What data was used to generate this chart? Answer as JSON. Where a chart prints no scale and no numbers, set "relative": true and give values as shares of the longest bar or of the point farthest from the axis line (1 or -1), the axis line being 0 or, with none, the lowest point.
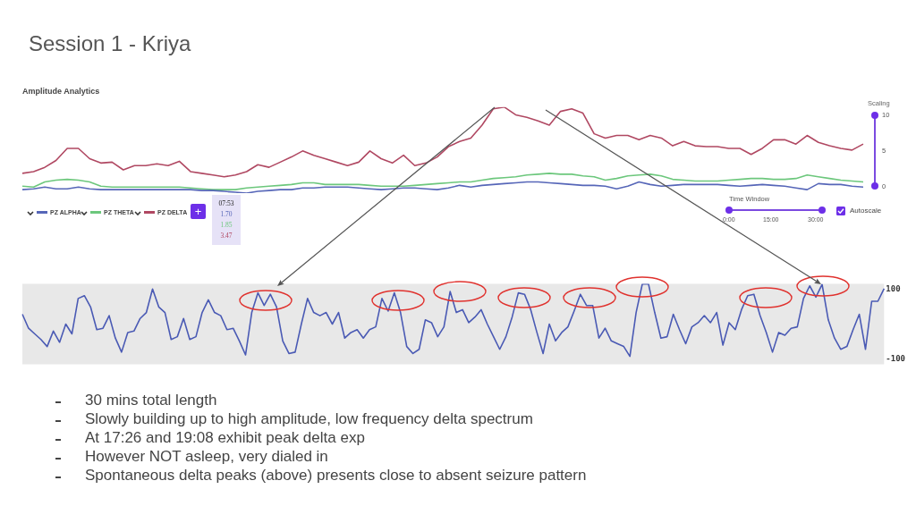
{
  "chart_data": [
    {
      "type": "other",
      "title": "Session 1 - Kriya"
    },
    {
      "type": "line",
      "title": "Amplitude Analytics",
      "relative": true,
      "legend": "bottom left",
      "categories": [
        null,
        null,
        null,
        null,
        null,
        null,
        null,
        null,
        null,
        null,
        null,
        null,
        null,
        null,
        null,
        null,
        null,
        null,
        null,
        null,
        null,
        null,
        null,
        null,
        null,
        null,
        null,
        null,
        null,
        null,
        null,
        null,
        null,
        null,
        null,
        null,
        null,
        null,
        null,
        null,
        null,
        null,
        null,
        null,
        null,
        null,
        null,
        null,
        null,
        null,
        null,
        null,
        null,
        null,
        null,
        null,
        null,
        null,
        null,
        null,
        null,
        null,
        null,
        null,
        null,
        null,
        null,
        null,
        null,
        null,
        null,
        null,
        null,
        null,
        null,
        null
      ],
      "series": [
        {
          "name": "PZ ALPHA",
          "color": "#5666b8",
          "values": [
            0.04,
            0.05,
            0.07,
            0.05,
            0.05,
            0.07,
            0.05,
            0.04,
            0.04,
            0.04,
            0.04,
            0.04,
            0.04,
            0.04,
            0.04,
            0.04,
            0.03,
            0.03,
            0.02,
            0.01,
            0.0,
            0.02,
            0.03,
            0.04,
            0.04,
            0.06,
            0.06,
            0.07,
            0.07,
            0.07,
            0.06,
            0.05,
            0.04,
            0.05,
            0.06,
            0.06,
            0.05,
            0.04,
            0.06,
            0.09,
            0.07,
            0.09,
            0.1,
            0.11,
            0.12,
            0.13,
            0.13,
            0.12,
            0.11,
            0.1,
            0.09,
            0.09,
            0.08,
            0.05,
            0.08,
            0.13,
            0.1,
            0.08,
            0.09,
            0.1,
            0.1,
            0.1,
            0.1,
            0.09,
            0.08,
            0.09,
            0.1,
            0.09,
            0.08,
            0.06,
            0.04,
            0.11,
            0.1,
            0.1,
            0.08,
            0.07
          ]
        },
        {
          "name": "PZ THETA",
          "color": "#6cc77c",
          "values": [
            0.08,
            0.07,
            0.13,
            0.15,
            0.16,
            0.15,
            0.13,
            0.08,
            0.07,
            0.07,
            0.07,
            0.07,
            0.07,
            0.07,
            0.07,
            0.06,
            0.05,
            0.04,
            0.04,
            0.04,
            0.06,
            0.07,
            0.08,
            0.09,
            0.1,
            0.12,
            0.12,
            0.1,
            0.1,
            0.1,
            0.1,
            0.09,
            0.08,
            0.08,
            0.08,
            0.09,
            0.1,
            0.11,
            0.12,
            0.13,
            0.13,
            0.15,
            0.17,
            0.18,
            0.19,
            0.21,
            0.22,
            0.23,
            0.22,
            0.22,
            0.2,
            0.19,
            0.15,
            0.17,
            0.2,
            0.21,
            0.22,
            0.2,
            0.16,
            0.15,
            0.14,
            0.14,
            0.14,
            0.15,
            0.16,
            0.17,
            0.17,
            0.16,
            0.16,
            0.17,
            0.21,
            0.19,
            0.17,
            0.15,
            0.14,
            0.13
          ]
        },
        {
          "name": "PZ DELTA",
          "color": "#b04862",
          "values": [
            0.23,
            0.25,
            0.3,
            0.38,
            0.52,
            0.52,
            0.4,
            0.35,
            0.36,
            0.27,
            0.32,
            0.32,
            0.34,
            0.32,
            0.37,
            0.25,
            0.23,
            0.21,
            0.19,
            0.21,
            0.25,
            0.33,
            0.3,
            0.36,
            0.42,
            0.49,
            0.44,
            0.4,
            0.36,
            0.32,
            0.36,
            0.49,
            0.4,
            0.35,
            0.44,
            0.32,
            0.35,
            0.42,
            0.54,
            0.6,
            0.64,
            0.79,
            0.98,
            1.0,
            0.91,
            0.88,
            0.84,
            0.79,
            0.95,
            0.98,
            0.93,
            0.69,
            0.64,
            0.67,
            0.67,
            0.62,
            0.67,
            0.64,
            0.55,
            0.6,
            0.55,
            0.54,
            0.54,
            0.52,
            0.52,
            0.45,
            0.52,
            0.62,
            0.62,
            0.57,
            0.67,
            0.59,
            0.55,
            0.52,
            0.5,
            0.57
          ]
        }
      ],
      "annotations": [
        "07:53",
        "1.70",
        "1.85",
        "3.47",
        "+",
        "Scaling",
        "10",
        "5",
        "0",
        "Time Window",
        "0:00",
        "15:00",
        "30:00",
        "Autoscale"
      ]
    },
    {
      "type": "line",
      "color": "#4a5ab4",
      "ylim": [
        -115,
        115
      ],
      "yticks": [
        -100,
        100
      ],
      "categories": [
        null,
        null,
        null,
        null,
        null,
        null,
        null,
        null,
        null,
        null,
        null,
        null,
        null,
        null,
        null,
        null,
        null,
        null,
        null,
        null,
        null,
        null,
        null,
        null,
        null,
        null,
        null,
        null,
        null,
        null,
        null,
        null,
        null,
        null,
        null,
        null,
        null,
        null,
        null,
        null,
        null,
        null,
        null,
        null,
        null,
        null,
        null,
        null,
        null,
        null,
        null,
        null,
        null,
        null,
        null,
        null,
        null,
        null,
        null,
        null,
        null,
        null,
        null,
        null,
        null,
        null,
        null,
        null,
        null,
        null,
        null,
        null,
        null,
        null,
        null,
        null,
        null,
        null,
        null,
        null,
        null,
        null,
        null,
        null,
        null,
        null,
        null,
        null,
        null,
        null,
        null,
        null,
        null,
        null,
        null,
        null,
        null,
        null,
        null,
        null,
        null,
        null,
        null,
        null,
        null,
        null,
        null,
        null,
        null,
        null,
        null,
        null,
        null,
        null,
        null,
        null,
        null,
        null,
        null,
        null,
        null,
        null,
        null,
        null,
        null,
        null,
        null,
        null,
        null,
        null,
        null,
        null,
        null,
        null,
        null,
        null,
        null,
        null,
        null,
        null
      ],
      "values": [
        28,
        -12,
        -28,
        -44,
        -64,
        -20,
        -52,
        0,
        -28,
        73,
        81,
        49,
        -16,
        -12,
        24,
        -40,
        -80,
        -24,
        -20,
        16,
        33,
        100,
        49,
        33,
        -44,
        -36,
        16,
        -44,
        -36,
        33,
        69,
        33,
        24,
        -16,
        -12,
        -48,
        -88,
        33,
        89,
        53,
        85,
        49,
        -48,
        -84,
        -80,
        0,
        73,
        33,
        24,
        33,
        0,
        33,
        -40,
        -24,
        -16,
        -40,
        -16,
        -8,
        73,
        37,
        89,
        33,
        -64,
        -84,
        -72,
        12,
        4,
        -36,
        -8,
        93,
        33,
        41,
        4,
        20,
        41,
        0,
        -36,
        -72,
        -36,
        20,
        89,
        85,
        41,
        -24,
        -84,
        0,
        -48,
        -24,
        -8,
        37,
        85,
        53,
        53,
        -40,
        -12,
        -48,
        -56,
        -64,
        -92,
        33,
        114,
        114,
        33,
        -40,
        -36,
        28,
        -16,
        -56,
        -8,
        4,
        24,
        4,
        33,
        -60,
        4,
        -16,
        41,
        81,
        85,
        24,
        -24,
        -80,
        -24,
        -32,
        -12,
        -8,
        73,
        109,
        77,
        113,
        12,
        -40,
        -72,
        -64,
        -16,
        28,
        -72,
        65,
        65,
        101
      ]
    },
    {
      "type": "other",
      "annotations": [
        "30 mins total length",
        "Slowly building up to high amplitude, low frequency delta spectrum",
        "At 17:26 and 19:08 exhibit peak delta exp",
        "However NOT asleep, very dialed in",
        "Spontaneous delta peaks (above) presents close to absent seizure pattern"
      ]
    }
  ]
}
